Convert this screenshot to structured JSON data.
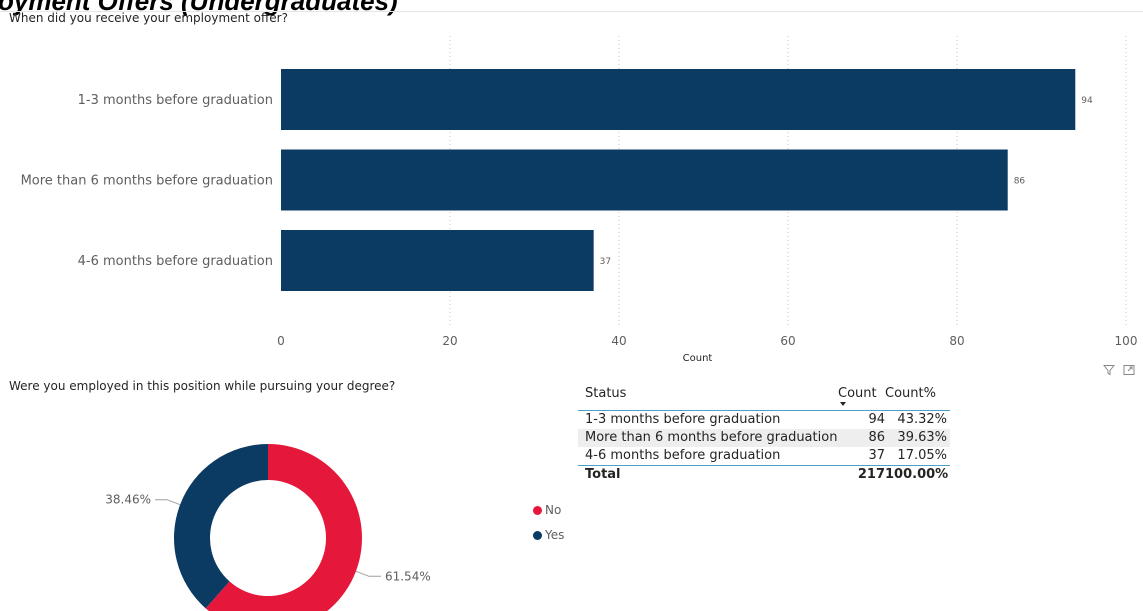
{
  "page": {
    "title": "oyment Offers (Undergraduates)"
  },
  "bar_visual": {
    "title": "When did you receive your employment offer?"
  },
  "donut_visual": {
    "title": "Were you employed in this position while pursuing your degree?"
  },
  "colors": {
    "navy": "#0b3a63",
    "red": "#e5173a",
    "grid": "#c8c6c4",
    "label": "#605e5c",
    "table_rule": "#4aa3c7"
  },
  "icons": {
    "filter": "filter-icon",
    "focus": "focus-mode-icon"
  },
  "chart_data": [
    {
      "type": "bar",
      "orientation": "horizontal",
      "categories": [
        "1-3 months before graduation",
        "More than 6 months before graduation",
        "4-6 months before graduation"
      ],
      "values": [
        94,
        86,
        37
      ],
      "data_labels": [
        "94",
        "86",
        "37"
      ],
      "xlabel": "Count",
      "ylabel": "",
      "xlim": [
        0,
        100
      ],
      "xticks": [
        "0",
        "20",
        "40",
        "60",
        "80",
        "100"
      ],
      "grid": "vertical dotted"
    },
    {
      "type": "pie",
      "style": "donut",
      "categories": [
        "No",
        "Yes"
      ],
      "values": [
        61.54,
        38.46
      ],
      "data_labels": [
        "61.54%",
        "38.46%"
      ],
      "legend": [
        "No",
        "Yes"
      ],
      "legend_position": "right"
    },
    {
      "type": "table",
      "columns": [
        "Status",
        "Count",
        "Count%"
      ],
      "rows": [
        {
          "status": "1-3 months before graduation",
          "count": "94",
          "pct": "43.32%"
        },
        {
          "status": "More than 6 months before graduation",
          "count": "86",
          "pct": "39.63%"
        },
        {
          "status": "4-6 months before graduation",
          "count": "37",
          "pct": "17.05%"
        }
      ],
      "total": {
        "label": "Total",
        "count": "217",
        "pct": "100.00%"
      },
      "sorted_by": "Count"
    }
  ]
}
